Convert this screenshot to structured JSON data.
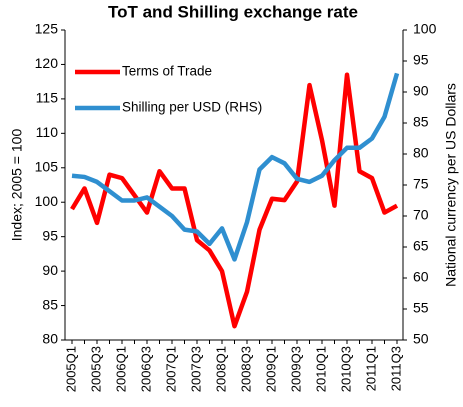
{
  "chart_data": {
    "type": "line",
    "title": "ToT and Shilling exchange rate",
    "y_label": "Index; 2005 = 100",
    "y2_label": "National currency per US Dollars",
    "categories": [
      "2005Q1",
      null,
      "2005Q3",
      null,
      "2006Q1",
      null,
      "2006Q3",
      null,
      "2007Q1",
      null,
      "2007Q3",
      null,
      "2008Q1",
      null,
      "2008Q3",
      null,
      "2009Q1",
      null,
      "2009Q3",
      null,
      "2010Q1",
      null,
      "2010Q3",
      null,
      "2011Q1",
      null,
      "2011Q3"
    ],
    "series": [
      {
        "name": "Terms of Trade",
        "color": "#ff0000",
        "values": [
          99,
          102,
          97,
          104,
          103.5,
          101,
          98.5,
          104.5,
          102,
          102,
          94.5,
          93,
          90,
          82,
          87,
          96,
          100.5,
          100.3,
          103,
          117,
          109,
          99.5,
          118.5,
          104.5,
          103.5,
          98.5,
          99.5
        ]
      },
      {
        "name": "Shilling per USD (RHS)",
        "color": "#2f8fd0",
        "axis": "y2",
        "values": [
          76.5,
          76.3,
          75.5,
          74,
          72.5,
          72.5,
          73,
          71.5,
          70,
          67.8,
          67.5,
          65.5,
          68,
          63,
          69,
          77.5,
          79.5,
          78.5,
          76,
          75.5,
          76.5,
          79,
          81,
          81,
          82.5,
          86,
          93
        ]
      }
    ],
    "ylim": [
      80,
      125
    ],
    "yticks": [
      80,
      85,
      90,
      95,
      100,
      105,
      110,
      115,
      120,
      125
    ],
    "y2lim": [
      50,
      100
    ],
    "y2ticks": [
      50,
      55,
      60,
      65,
      70,
      75,
      80,
      85,
      90,
      95,
      100
    ],
    "legend": "upper left",
    "grid": false
  }
}
